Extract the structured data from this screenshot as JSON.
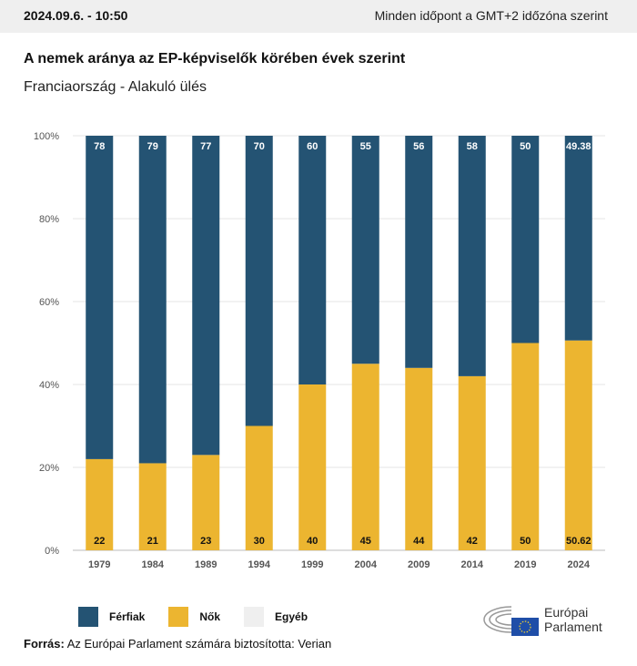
{
  "header": {
    "date": "2024.09.6. - 10:50",
    "timezone_note": "Minden időpont a GMT+2 időzóna szerint"
  },
  "chart_data": {
    "type": "bar",
    "stacked": true,
    "title": "A nemek aránya az EP-képviselők körében évek szerint",
    "subtitle": "Franciaország - Alakuló ülés",
    "categories": [
      "1979",
      "1984",
      "1989",
      "1994",
      "1999",
      "2004",
      "2009",
      "2014",
      "2019",
      "2024"
    ],
    "series": [
      {
        "name": "Nők",
        "color": "#ecb530",
        "values": [
          22,
          21,
          23,
          30,
          40,
          45,
          44,
          42,
          50,
          50.62
        ]
      },
      {
        "name": "Férfiak",
        "color": "#245373",
        "values": [
          78,
          79,
          77,
          70,
          60,
          55,
          56,
          58,
          50,
          49.38
        ]
      },
      {
        "name": "Egyéb",
        "color": "#efefef",
        "values": [
          0,
          0,
          0,
          0,
          0,
          0,
          0,
          0,
          0,
          0
        ]
      }
    ],
    "yticks": [
      "0%",
      "20%",
      "40%",
      "60%",
      "80%",
      "100%"
    ],
    "ylim": [
      0,
      100
    ],
    "grid": true,
    "legend": "bottom-left"
  },
  "legend": {
    "items": [
      {
        "label": "Férfiak",
        "color": "#245373"
      },
      {
        "label": "Nők",
        "color": "#ecb530"
      },
      {
        "label": "Egyéb",
        "color": "#efefef"
      }
    ]
  },
  "source": {
    "label": "Forrás:",
    "text": "Az Európai Parlament számára biztosította: Verian"
  },
  "logo": {
    "line1": "Európai",
    "line2": "Parlament"
  }
}
